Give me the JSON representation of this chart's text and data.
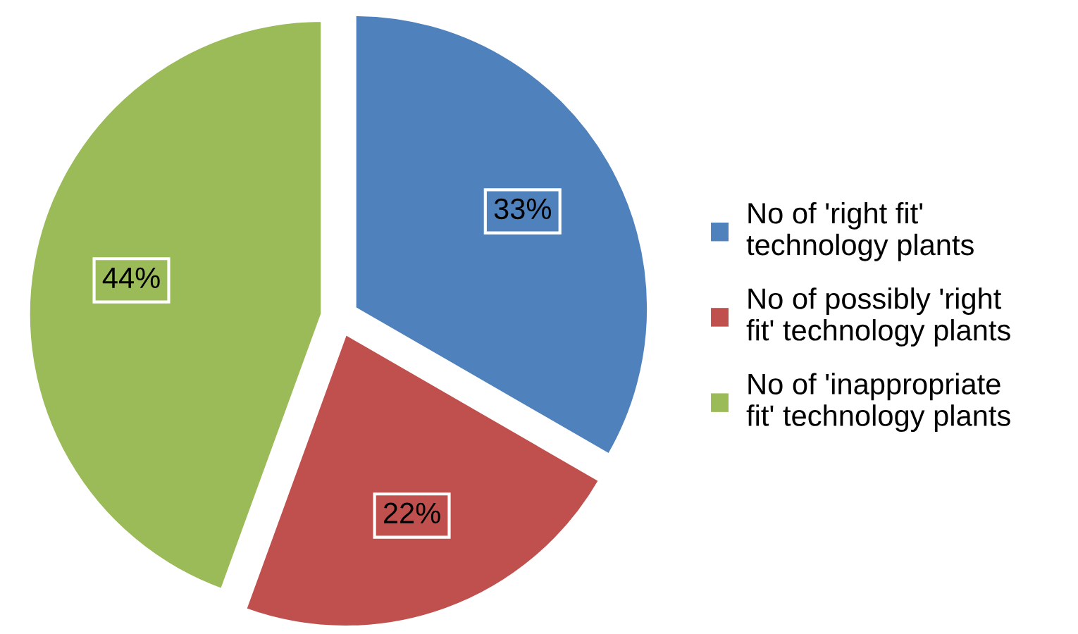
{
  "chart_data": {
    "type": "pie",
    "categories": [
      "No of 'right fit'\ntechnology plants",
      "No of possibly 'right\nfit' technology plants",
      "No of 'inappropriate\nfit' technology plants"
    ],
    "values": [
      33,
      22,
      44
    ],
    "colors": [
      "#4f81bd",
      "#c0504d",
      "#9bbb59"
    ],
    "value_labels": [
      "33%",
      "22%",
      "44%"
    ],
    "legend": "right"
  }
}
